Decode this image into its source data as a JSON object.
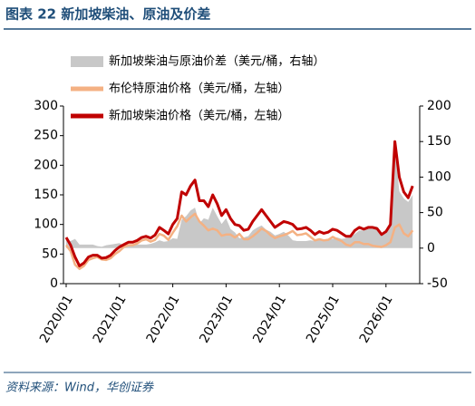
{
  "chart_data": {
    "type": "line",
    "title": "图表 22 新加坡柴油、原油及价差",
    "source": "资料来源：Wind，华创证券",
    "x": [
      "2020/01",
      "2020/02",
      "2020/03",
      "2020/04",
      "2020/05",
      "2020/06",
      "2020/07",
      "2020/08",
      "2020/09",
      "2020/10",
      "2020/11",
      "2020/12",
      "2021/01",
      "2021/02",
      "2021/03",
      "2021/04",
      "2021/05",
      "2021/06",
      "2021/07",
      "2021/08",
      "2021/09",
      "2021/10",
      "2021/11",
      "2021/12",
      "2022/01",
      "2022/02",
      "2022/03",
      "2022/04",
      "2022/05",
      "2022/06",
      "2022/07",
      "2022/08",
      "2022/09",
      "2022/10",
      "2022/11",
      "2022/12",
      "2023/01",
      "2023/02",
      "2023/03",
      "2023/04",
      "2023/05",
      "2023/06",
      "2023/07",
      "2023/08",
      "2023/09",
      "2023/10",
      "2023/11",
      "2023/12",
      "2024/01",
      "2024/02",
      "2024/03",
      "2024/04",
      "2024/05",
      "2024/06",
      "2024/07",
      "2024/08",
      "2024/09",
      "2024/10",
      "2024/11",
      "2024/12",
      "2025/01",
      "2025/02",
      "2025/03",
      "2025/04",
      "2025/05",
      "2025/06",
      "2025/07",
      "2025/08",
      "2025/09",
      "2025/10",
      "2025/11",
      "2025/12",
      "2026/01",
      "2026/02",
      "2026/03",
      "2026/04",
      "2026/05",
      "2026/06",
      "2026/07"
    ],
    "xticks": [
      "2020/01",
      "2021/01",
      "2022/01",
      "2023/01",
      "2024/01",
      "2025/01",
      "2026/01"
    ],
    "series": [
      {
        "name": "新加坡柴油与原油价差（美元/桶，右轴）",
        "color": "#c8c8c8",
        "axis": "y2",
        "style": "area",
        "values": [
          13,
          10,
          13,
          5,
          5,
          5,
          5,
          3,
          2,
          4,
          5,
          6,
          7,
          4,
          5,
          5,
          5,
          5,
          5,
          6,
          8,
          11,
          9,
          10,
          14,
          13,
          40,
          45,
          53,
          57,
          35,
          42,
          40,
          57,
          45,
          34,
          42,
          27,
          22,
          14,
          15,
          17,
          25,
          29,
          32,
          26,
          23,
          18,
          20,
          23,
          18,
          11,
          10,
          10,
          10,
          11,
          10,
          13,
          12,
          13,
          13,
          15,
          13,
          14,
          16,
          20,
          25,
          25,
          28,
          31,
          30,
          21,
          23,
          30,
          145,
          80,
          70,
          65,
          75
        ]
      },
      {
        "name": "布伦特原油价格（美元/桶，左轴）",
        "color": "#f4b183",
        "style": "line",
        "values": [
          65,
          55,
          32,
          25,
          30,
          40,
          43,
          45,
          41,
          40,
          43,
          50,
          55,
          62,
          65,
          65,
          68,
          73,
          75,
          71,
          74,
          84,
          81,
          74,
          86,
          97,
          115,
          105,
          112,
          118,
          105,
          98,
          90,
          93,
          90,
          81,
          83,
          83,
          78,
          84,
          75,
          75,
          80,
          86,
          93,
          89,
          82,
          77,
          80,
          82,
          85,
          89,
          82,
          83,
          85,
          79,
          73,
          75,
          73,
          74,
          79,
          75,
          72,
          66,
          64,
          70,
          70,
          67,
          67,
          64,
          63,
          62,
          65,
          70,
          95,
          100,
          85,
          80,
          90
        ]
      },
      {
        "name": "新加坡柴油价格（美元/桶，左轴）",
        "color": "#c00000",
        "style": "line",
        "values": [
          78,
          65,
          45,
          30,
          35,
          45,
          48,
          48,
          43,
          44,
          48,
          56,
          62,
          66,
          70,
          70,
          73,
          78,
          80,
          77,
          82,
          95,
          90,
          84,
          100,
          110,
          155,
          150,
          165,
          175,
          140,
          140,
          130,
          150,
          135,
          115,
          125,
          110,
          100,
          98,
          90,
          92,
          105,
          115,
          125,
          115,
          105,
          95,
          100,
          105,
          103,
          100,
          92,
          93,
          95,
          90,
          83,
          88,
          85,
          87,
          92,
          90,
          85,
          80,
          80,
          90,
          95,
          92,
          95,
          95,
          93,
          83,
          88,
          100,
          240,
          180,
          155,
          145,
          165
        ]
      }
    ],
    "ylim": [
      0,
      300
    ],
    "yticks": [
      0,
      50,
      100,
      150,
      200,
      250,
      300
    ],
    "y2lim": [
      -50,
      200
    ],
    "y2ticks": [
      -50,
      0,
      50,
      100,
      150,
      200
    ]
  }
}
